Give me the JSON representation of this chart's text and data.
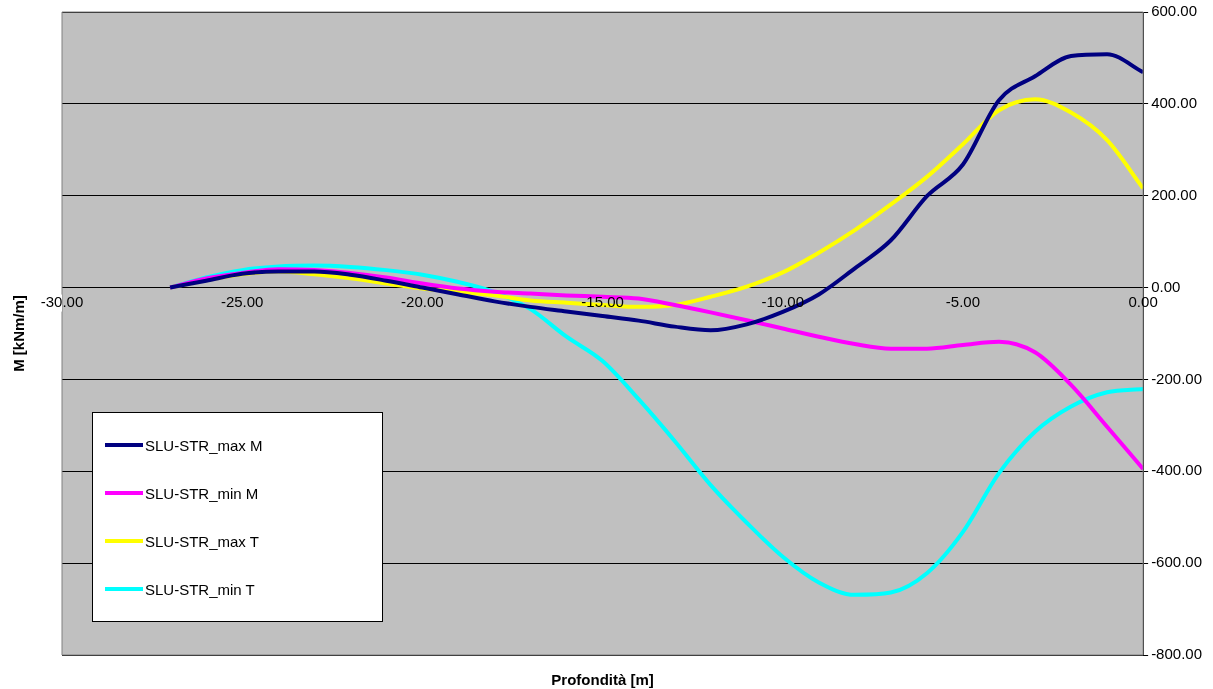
{
  "chart_data": {
    "type": "line",
    "xlabel": "Profondità [m]",
    "ylabel": "M [kNm/m]",
    "xlim": [
      -30,
      0
    ],
    "ylim": [
      -800,
      600
    ],
    "xticks": [
      {
        "value": -30,
        "label": "-30.00"
      },
      {
        "value": -25,
        "label": "-25.00"
      },
      {
        "value": -20,
        "label": "-20.00"
      },
      {
        "value": -15,
        "label": "-15.00"
      },
      {
        "value": -10,
        "label": "-10.00"
      },
      {
        "value": -5,
        "label": "-5.00"
      },
      {
        "value": 0,
        "label": "0.00"
      }
    ],
    "yticks": [
      {
        "value": -800,
        "label": "-800.00"
      },
      {
        "value": -600,
        "label": "-600.00"
      },
      {
        "value": -400,
        "label": "-400.00"
      },
      {
        "value": -200,
        "label": "-200.00"
      },
      {
        "value": 0,
        "label": "0.00"
      },
      {
        "value": 200,
        "label": "200.00"
      },
      {
        "value": 400,
        "label": "400.00"
      },
      {
        "value": 600,
        "label": "600.00"
      }
    ],
    "x": [
      -27,
      -26,
      -25,
      -24,
      -23,
      -22,
      -21,
      -20,
      -19,
      -18,
      -17,
      -16,
      -15,
      -14,
      -13,
      -12,
      -11,
      -10,
      -9,
      -8,
      -7,
      -6,
      -5,
      -4,
      -3,
      -2,
      -1,
      0
    ],
    "series": [
      {
        "name": "SLU-STR_max M",
        "color": "#000080",
        "values": [
          0,
          15,
          30,
          35,
          35,
          28,
          15,
          0,
          -15,
          -30,
          -42,
          -52,
          -62,
          -72,
          -85,
          -93,
          -80,
          -53,
          -15,
          42,
          103,
          199,
          268,
          408,
          460,
          504,
          508,
          469
        ]
      },
      {
        "name": "SLU-STR_min M",
        "color": "#ff00ff",
        "values": [
          0,
          20,
          32,
          40,
          38,
          32,
          22,
          9,
          -2,
          -9,
          -13,
          -17,
          -20,
          -24,
          -38,
          -54,
          -71,
          -89,
          -107,
          -123,
          -133,
          -133,
          -125,
          -118,
          -141,
          -212,
          -303,
          -395
        ]
      },
      {
        "name": "SLU-STR_max T",
        "color": "#ffff00",
        "values": [
          0,
          16,
          29,
          35,
          29,
          20,
          9,
          -2,
          -9,
          -17,
          -28,
          -33,
          -38,
          -42,
          -38,
          -20,
          2,
          33,
          76,
          125,
          181,
          241,
          312,
          386,
          410,
          381,
          321,
          216
        ]
      },
      {
        "name": "SLU-STR_min T",
        "color": "#00ffff",
        "values": [
          0,
          22,
          38,
          46,
          48,
          45,
          38,
          28,
          12,
          -10,
          -47,
          -107,
          -160,
          -243,
          -334,
          -430,
          -512,
          -586,
          -642,
          -669,
          -664,
          -622,
          -532,
          -404,
          -314,
          -259,
          -228,
          -221
        ]
      }
    ],
    "grid": "y",
    "legend": "bottom left",
    "marker": "none",
    "line_style": "solid"
  }
}
